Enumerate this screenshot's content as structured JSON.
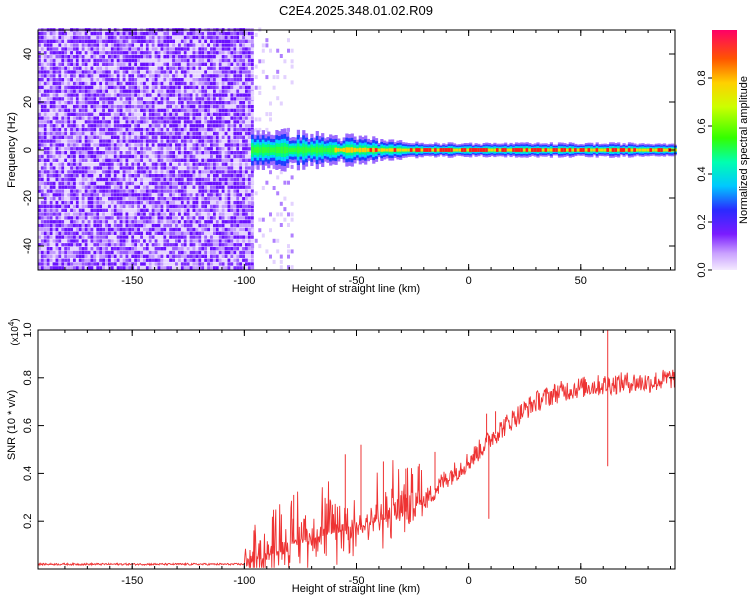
{
  "title": "C2E4.2025.348.01.02.R09",
  "chart_data": [
    {
      "type": "heatmap",
      "name": "spectrogram",
      "xlabel": "Height of straight line (km)",
      "ylabel": "Frequency (Hz)",
      "xlim": [
        -192,
        92
      ],
      "ylim": [
        -50,
        50
      ],
      "x_ticks": [
        -150,
        -100,
        -50,
        0,
        50
      ],
      "y_ticks": [
        -40,
        -20,
        0,
        20,
        40
      ],
      "description": {
        "noise_region_km": [
          -192,
          -97
        ],
        "sparse_region_km": [
          -97,
          -78
        ],
        "signal_band_center_hz": 0,
        "signal_band_halfwidth_hz": [
          6,
          2
        ]
      },
      "colorbar": {
        "label": "Normalized spectral amplitude",
        "range": [
          0.0,
          1.0
        ],
        "ticks": [
          "0.0",
          "0.2",
          "0.4",
          "0.6",
          "0.8"
        ],
        "tick_values": [
          0.0,
          0.2,
          0.4,
          0.6,
          0.8
        ]
      }
    },
    {
      "type": "line",
      "name": "snr",
      "xlabel": "Height of straight line (km)",
      "ylabel": "SNR (10 * v/v)",
      "multiplier_label": "(x10",
      "multiplier_exp": "4",
      "multiplier_close": ")",
      "xlim": [
        -192,
        92
      ],
      "ylim": [
        0,
        1.0
      ],
      "x_ticks": [
        -150,
        -100,
        -50,
        0,
        50
      ],
      "y_ticks": [
        0.2,
        0.4,
        0.6,
        0.8,
        1.0
      ],
      "y_tick_labels": [
        "0.2",
        "0.4",
        "0.6",
        "0.8",
        "1.0"
      ],
      "color": "#ee3333",
      "trend_points": [
        [
          -192,
          0.02
        ],
        [
          -100,
          0.02
        ],
        [
          -90,
          0.05
        ],
        [
          -80,
          0.1
        ],
        [
          -70,
          0.13
        ],
        [
          -60,
          0.15
        ],
        [
          -50,
          0.17
        ],
        [
          -40,
          0.2
        ],
        [
          -30,
          0.23
        ],
        [
          -20,
          0.28
        ],
        [
          -10,
          0.38
        ],
        [
          0,
          0.45
        ],
        [
          10,
          0.55
        ],
        [
          20,
          0.63
        ],
        [
          30,
          0.7
        ],
        [
          40,
          0.74
        ],
        [
          50,
          0.76
        ],
        [
          60,
          0.77
        ],
        [
          70,
          0.78
        ],
        [
          80,
          0.78
        ],
        [
          92,
          0.8
        ]
      ],
      "spikes": [
        [
          -93,
          0.12
        ],
        [
          -78,
          0.31
        ],
        [
          -55,
          0.48
        ],
        [
          -48,
          0.52
        ],
        [
          -38,
          0.45
        ],
        [
          -28,
          0.42
        ],
        [
          -22,
          0.44
        ],
        [
          -15,
          0.49
        ],
        [
          8,
          0.65
        ],
        [
          12,
          0.66
        ],
        [
          9,
          0.21
        ],
        [
          62,
          1.0
        ],
        [
          62,
          0.43
        ]
      ]
    }
  ]
}
